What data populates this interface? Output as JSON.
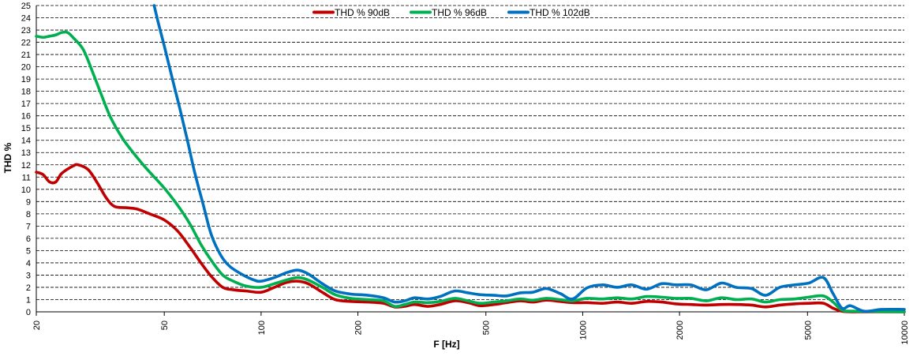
{
  "chart_data": {
    "type": "line",
    "xlabel": "F [Hz]",
    "ylabel": "THD %",
    "x_scale": "log",
    "xlim": [
      20,
      10000
    ],
    "ylim": [
      0,
      25
    ],
    "x_ticks": [
      20,
      50,
      100,
      200,
      500,
      1000,
      2000,
      5000,
      10000
    ],
    "x_tick_labels": [
      "20",
      "50",
      "100",
      "200",
      "500",
      "1000",
      "2000",
      "5000",
      "10000"
    ],
    "y_ticks": [
      0,
      1,
      2,
      3,
      4,
      5,
      6,
      7,
      8,
      9,
      10,
      11,
      12,
      13,
      14,
      15,
      16,
      17,
      18,
      19,
      20,
      21,
      22,
      23,
      24,
      25
    ],
    "grid": "horizontal dashed",
    "legend_position": "top-center",
    "series": [
      {
        "name": "THD % 90dB",
        "color": "#C00000",
        "points": [
          [
            20,
            11.4
          ],
          [
            21,
            11.2
          ],
          [
            22,
            10.6
          ],
          [
            23,
            10.6
          ],
          [
            24,
            11.3
          ],
          [
            26,
            11.9
          ],
          [
            27,
            12.0
          ],
          [
            29,
            11.6
          ],
          [
            31,
            10.5
          ],
          [
            33,
            9.3
          ],
          [
            35,
            8.6
          ],
          [
            38,
            8.5
          ],
          [
            41,
            8.4
          ],
          [
            45,
            8.0
          ],
          [
            50,
            7.5
          ],
          [
            55,
            6.6
          ],
          [
            60,
            5.3
          ],
          [
            65,
            4.0
          ],
          [
            70,
            2.9
          ],
          [
            76,
            2.0
          ],
          [
            82,
            1.8
          ],
          [
            90,
            1.7
          ],
          [
            100,
            1.6
          ],
          [
            110,
            2.0
          ],
          [
            120,
            2.4
          ],
          [
            130,
            2.5
          ],
          [
            140,
            2.3
          ],
          [
            155,
            1.6
          ],
          [
            170,
            1.0
          ],
          [
            190,
            0.85
          ],
          [
            215,
            0.8
          ],
          [
            240,
            0.7
          ],
          [
            260,
            0.4
          ],
          [
            280,
            0.45
          ],
          [
            300,
            0.6
          ],
          [
            330,
            0.45
          ],
          [
            360,
            0.6
          ],
          [
            400,
            0.9
          ],
          [
            440,
            0.75
          ],
          [
            480,
            0.5
          ],
          [
            530,
            0.6
          ],
          [
            580,
            0.75
          ],
          [
            640,
            0.9
          ],
          [
            700,
            0.8
          ],
          [
            770,
            0.95
          ],
          [
            850,
            0.85
          ],
          [
            930,
            0.75
          ],
          [
            1030,
            0.75
          ],
          [
            1150,
            0.7
          ],
          [
            1280,
            0.8
          ],
          [
            1420,
            0.7
          ],
          [
            1580,
            0.85
          ],
          [
            1760,
            0.8
          ],
          [
            1950,
            0.65
          ],
          [
            2170,
            0.6
          ],
          [
            2420,
            0.55
          ],
          [
            2700,
            0.6
          ],
          [
            3000,
            0.6
          ],
          [
            3350,
            0.55
          ],
          [
            3700,
            0.4
          ],
          [
            4100,
            0.55
          ],
          [
            4550,
            0.65
          ],
          [
            5050,
            0.7
          ],
          [
            5600,
            0.7
          ],
          [
            6000,
            0.3
          ],
          [
            6400,
            0.05
          ],
          [
            7000,
            0.0
          ],
          [
            10000,
            0.0
          ]
        ]
      },
      {
        "name": "THD % 96dB",
        "color": "#00B050",
        "points": [
          [
            20,
            22.5
          ],
          [
            21,
            22.4
          ],
          [
            22,
            22.5
          ],
          [
            23,
            22.6
          ],
          [
            24,
            22.8
          ],
          [
            25,
            22.8
          ],
          [
            26,
            22.4
          ],
          [
            28,
            21.4
          ],
          [
            30,
            19.5
          ],
          [
            32,
            17.6
          ],
          [
            34,
            15.9
          ],
          [
            37,
            14.2
          ],
          [
            40,
            13.0
          ],
          [
            44,
            11.7
          ],
          [
            50,
            10.1
          ],
          [
            55,
            8.7
          ],
          [
            60,
            7.2
          ],
          [
            65,
            5.5
          ],
          [
            70,
            4.2
          ],
          [
            76,
            3.0
          ],
          [
            82,
            2.5
          ],
          [
            90,
            2.1
          ],
          [
            100,
            2.0
          ],
          [
            110,
            2.3
          ],
          [
            120,
            2.6
          ],
          [
            130,
            2.8
          ],
          [
            140,
            2.6
          ],
          [
            155,
            2.0
          ],
          [
            170,
            1.4
          ],
          [
            190,
            1.1
          ],
          [
            215,
            1.0
          ],
          [
            240,
            0.9
          ],
          [
            260,
            0.45
          ],
          [
            280,
            0.6
          ],
          [
            300,
            0.8
          ],
          [
            330,
            0.75
          ],
          [
            360,
            0.85
          ],
          [
            400,
            1.1
          ],
          [
            440,
            0.9
          ],
          [
            480,
            0.7
          ],
          [
            530,
            0.8
          ],
          [
            580,
            0.9
          ],
          [
            640,
            1.05
          ],
          [
            700,
            0.95
          ],
          [
            770,
            1.1
          ],
          [
            850,
            1.0
          ],
          [
            930,
            0.9
          ],
          [
            1030,
            1.1
          ],
          [
            1150,
            1.05
          ],
          [
            1280,
            1.15
          ],
          [
            1420,
            1.05
          ],
          [
            1580,
            1.25
          ],
          [
            1760,
            1.2
          ],
          [
            1950,
            1.1
          ],
          [
            2170,
            1.1
          ],
          [
            2420,
            0.9
          ],
          [
            2700,
            1.15
          ],
          [
            3000,
            1.0
          ],
          [
            3350,
            1.05
          ],
          [
            3700,
            0.8
          ],
          [
            4100,
            1.0
          ],
          [
            4550,
            1.05
          ],
          [
            5050,
            1.2
          ],
          [
            5600,
            1.3
          ],
          [
            6000,
            0.8
          ],
          [
            6400,
            0.15
          ],
          [
            7000,
            0.05
          ],
          [
            10000,
            0.0
          ]
        ]
      },
      {
        "name": "THD % 102dB",
        "color": "#0070C0",
        "points": [
          [
            46.5,
            25.0
          ],
          [
            48,
            23.5
          ],
          [
            50,
            21.7
          ],
          [
            53,
            19.0
          ],
          [
            56,
            16.5
          ],
          [
            59,
            14.0
          ],
          [
            62,
            11.5
          ],
          [
            66,
            8.8
          ],
          [
            70,
            6.3
          ],
          [
            75,
            4.6
          ],
          [
            80,
            3.7
          ],
          [
            88,
            3.0
          ],
          [
            95,
            2.6
          ],
          [
            100,
            2.5
          ],
          [
            110,
            2.8
          ],
          [
            120,
            3.2
          ],
          [
            130,
            3.4
          ],
          [
            140,
            3.1
          ],
          [
            155,
            2.3
          ],
          [
            170,
            1.7
          ],
          [
            190,
            1.45
          ],
          [
            215,
            1.35
          ],
          [
            240,
            1.15
          ],
          [
            260,
            0.8
          ],
          [
            280,
            0.9
          ],
          [
            300,
            1.15
          ],
          [
            330,
            1.05
          ],
          [
            360,
            1.25
          ],
          [
            400,
            1.7
          ],
          [
            440,
            1.55
          ],
          [
            480,
            1.4
          ],
          [
            530,
            1.35
          ],
          [
            580,
            1.3
          ],
          [
            640,
            1.55
          ],
          [
            700,
            1.6
          ],
          [
            770,
            1.9
          ],
          [
            850,
            1.5
          ],
          [
            930,
            1.05
          ],
          [
            1030,
            1.95
          ],
          [
            1150,
            2.2
          ],
          [
            1280,
            2.0
          ],
          [
            1420,
            2.2
          ],
          [
            1580,
            1.85
          ],
          [
            1760,
            2.3
          ],
          [
            1950,
            2.2
          ],
          [
            2170,
            2.2
          ],
          [
            2420,
            1.8
          ],
          [
            2700,
            2.35
          ],
          [
            3000,
            2.0
          ],
          [
            3350,
            1.9
          ],
          [
            3700,
            1.35
          ],
          [
            4100,
            2.0
          ],
          [
            4550,
            2.2
          ],
          [
            5050,
            2.35
          ],
          [
            5600,
            2.8
          ],
          [
            6000,
            1.5
          ],
          [
            6400,
            0.3
          ],
          [
            6800,
            0.5
          ],
          [
            7500,
            0.05
          ],
          [
            8500,
            0.2
          ],
          [
            10000,
            0.2
          ]
        ]
      }
    ]
  }
}
